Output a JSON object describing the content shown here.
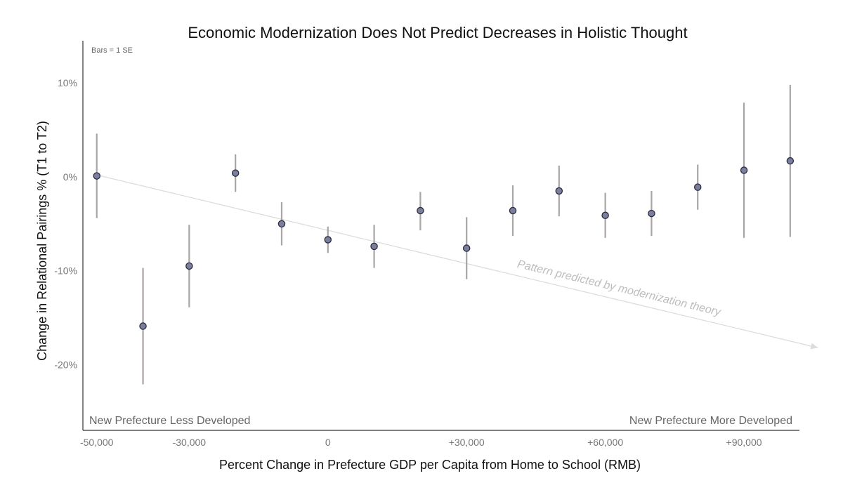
{
  "chart_data": {
    "type": "scatter",
    "title": "Economic Modernization Does Not Predict Decreases in Holistic Thought",
    "xlabel": "Percent Change in Prefecture GDP per Capita from Home to School (RMB)",
    "ylabel": "Change in Relational Pairings % (T1 to T2)",
    "note": "Bars = 1 SE",
    "left_label": "New Prefecture Less Developed",
    "right_label": "New Prefecture More Developed",
    "annotation": "Pattern predicted by modernization theory",
    "xlim": [
      -53000,
      102000
    ],
    "ylim": [
      -27,
      14.5
    ],
    "x_ticks": [
      {
        "value": -50000,
        "label": "-50,000"
      },
      {
        "value": -30000,
        "label": "-30,000"
      },
      {
        "value": 0,
        "label": "0"
      },
      {
        "value": 30000,
        "label": "+30,000"
      },
      {
        "value": 60000,
        "label": "+60,000"
      },
      {
        "value": 90000,
        "label": "+90,000"
      }
    ],
    "y_ticks": [
      {
        "value": 10,
        "label": "10%"
      },
      {
        "value": 0,
        "label": "0%"
      },
      {
        "value": -10,
        "label": "-10%"
      },
      {
        "value": -20,
        "label": "-20%"
      }
    ],
    "trend_line": {
      "x": [
        -50000,
        106000
      ],
      "y": [
        0.2,
        -18.2
      ]
    },
    "points": [
      {
        "x": -50000,
        "y": 0.1,
        "lo": -4.4,
        "hi": 4.6
      },
      {
        "x": -40000,
        "y": -15.9,
        "lo": -22.1,
        "hi": -9.7
      },
      {
        "x": -30000,
        "y": -9.5,
        "lo": -13.9,
        "hi": -5.1
      },
      {
        "x": -20000,
        "y": 0.4,
        "lo": -1.6,
        "hi": 2.4
      },
      {
        "x": -10000,
        "y": -5.0,
        "lo": -7.3,
        "hi": -2.7
      },
      {
        "x": 0,
        "y": -6.7,
        "lo": -8.1,
        "hi": -5.3
      },
      {
        "x": 10000,
        "y": -7.4,
        "lo": -9.7,
        "hi": -5.1
      },
      {
        "x": 20000,
        "y": -3.6,
        "lo": -5.7,
        "hi": -1.6
      },
      {
        "x": 30000,
        "y": -7.6,
        "lo": -10.9,
        "hi": -4.3
      },
      {
        "x": 40000,
        "y": -3.6,
        "lo": -6.3,
        "hi": -0.9
      },
      {
        "x": 50000,
        "y": -1.5,
        "lo": -4.2,
        "hi": 1.2
      },
      {
        "x": 60000,
        "y": -4.1,
        "lo": -6.5,
        "hi": -1.7
      },
      {
        "x": 70000,
        "y": -3.9,
        "lo": -6.3,
        "hi": -1.5
      },
      {
        "x": 80000,
        "y": -1.1,
        "lo": -3.5,
        "hi": 1.3
      },
      {
        "x": 90000,
        "y": 0.7,
        "lo": -6.5,
        "hi": 7.9
      },
      {
        "x": 100000,
        "y": 1.7,
        "lo": -6.4,
        "hi": 9.8
      }
    ],
    "colors": {
      "point_fill": "#7a7f9e",
      "point_stroke": "#2b2b3d",
      "error_bar": "#a9a4a6",
      "trend": "#dcdcdc",
      "axis": "#333333"
    }
  }
}
